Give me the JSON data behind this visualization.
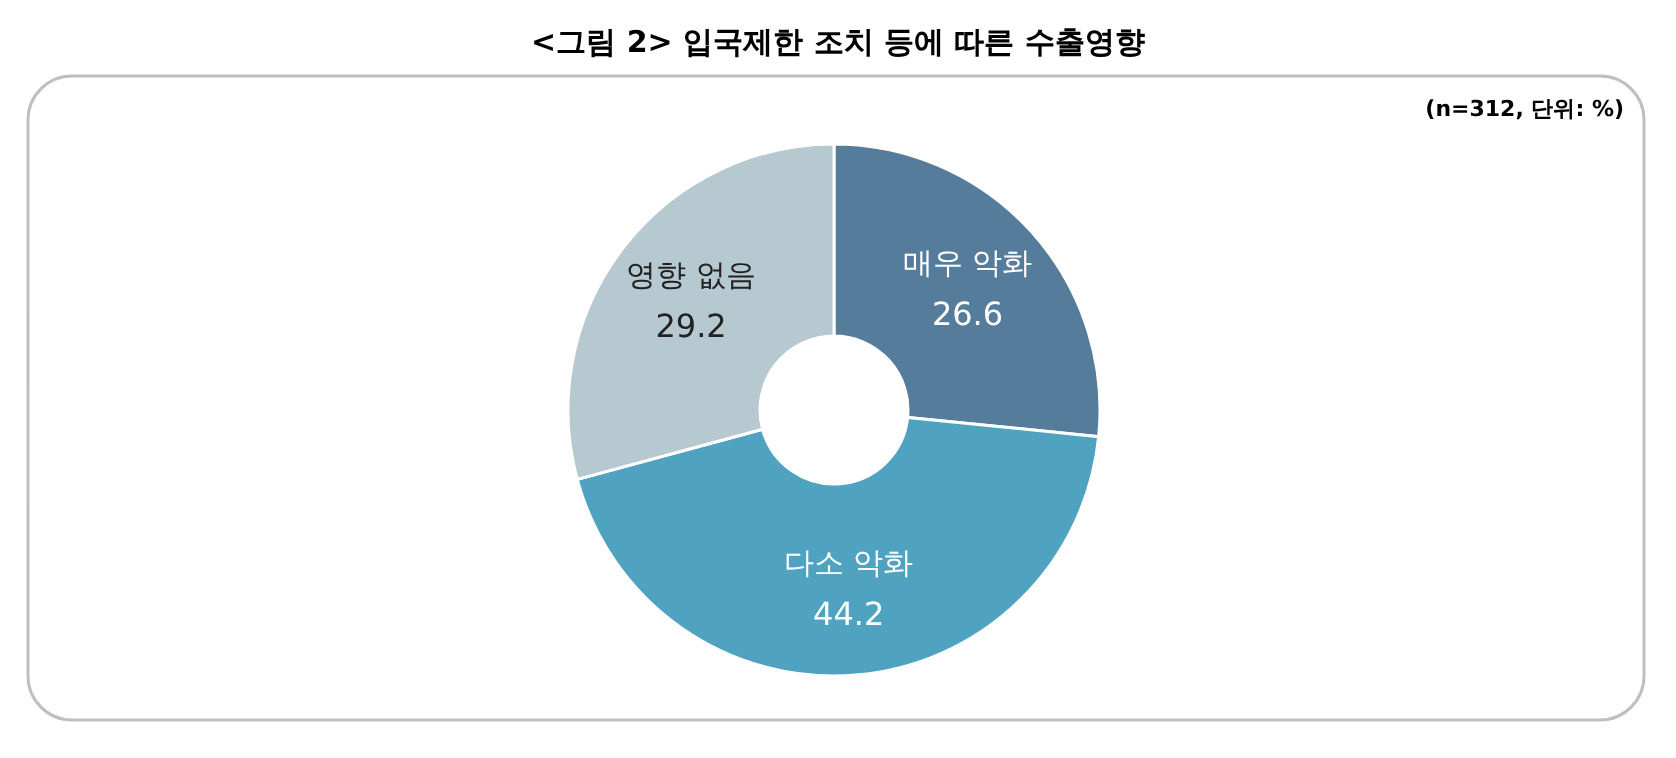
{
  "chart_data": {
    "type": "donut",
    "title": "<그림 2> 입국제한 조치 등에 따른 수출영향",
    "subtitle": "(n=312, 단위: %)",
    "categories": [
      "매우 악화",
      "다소 악화",
      "영향 없음"
    ],
    "values": [
      26.6,
      44.2,
      29.2
    ],
    "colors": [
      "#567c9c",
      "#4fa3c1",
      "#b6c9d0"
    ],
    "data_labels": true
  }
}
